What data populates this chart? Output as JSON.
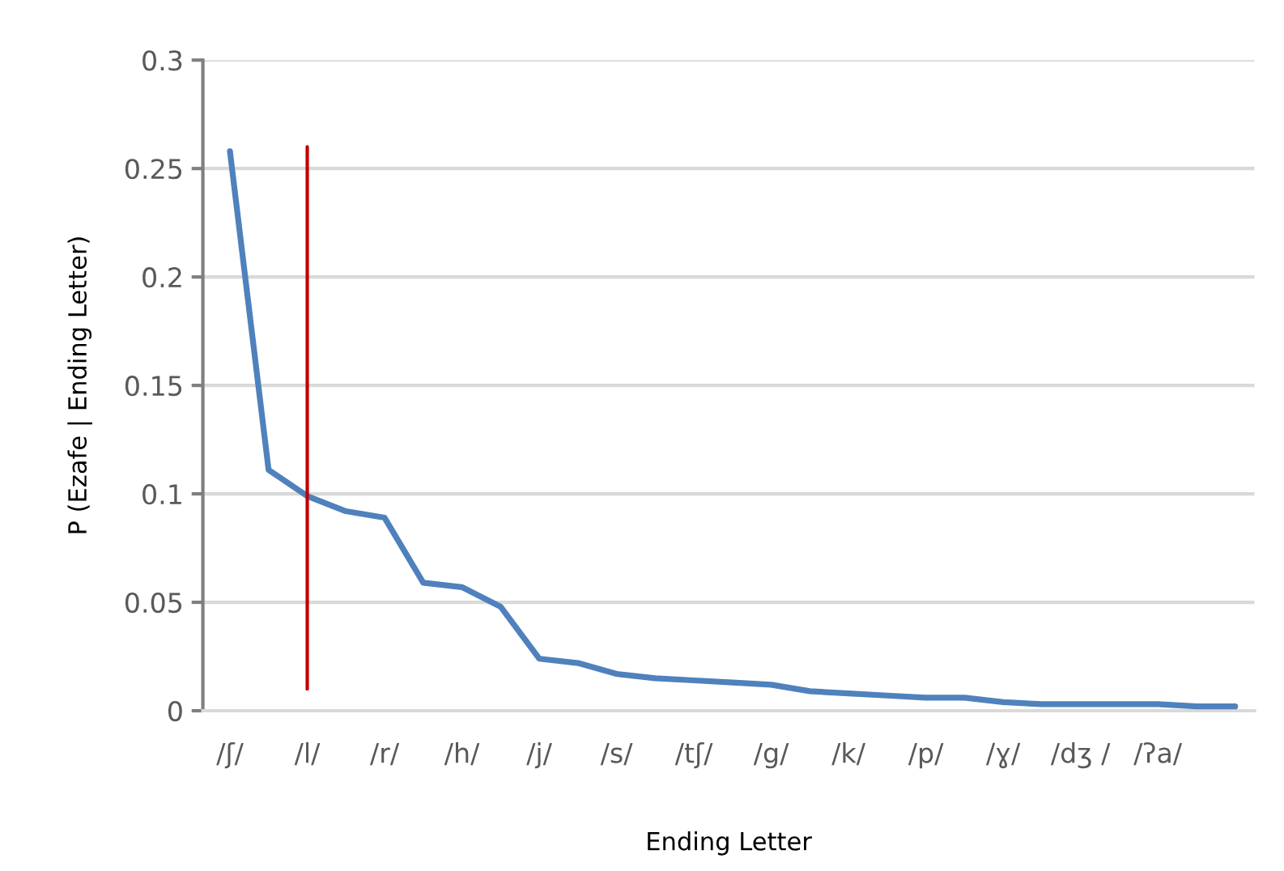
{
  "chart_data": {
    "type": "line",
    "xlabel": "Ending Letter",
    "ylabel": "P (Ezafe | Ending Letter)",
    "categories": [
      "/ʃ/",
      null,
      "/l/",
      null,
      "/r/",
      null,
      "/h/",
      null,
      "/j/",
      null,
      "/s/",
      null,
      "/tʃ/",
      null,
      "/g/",
      null,
      "/k/",
      null,
      "/p/",
      null,
      "/ɣ/",
      null,
      "/dʒ /",
      null,
      "/ʔa/",
      null,
      null
    ],
    "series": [
      {
        "color": "#4f81bd",
        "values": [
          0.258,
          0.111,
          0.099,
          0.092,
          0.089,
          0.059,
          0.057,
          0.048,
          0.024,
          0.022,
          0.017,
          0.015,
          0.014,
          0.013,
          0.012,
          0.009,
          0.008,
          0.007,
          0.006,
          0.006,
          0.004,
          0.003,
          0.003,
          0.003,
          0.003,
          0.002,
          0.002
        ]
      },
      {
        "type": "line",
        "color": "#c00000",
        "x": [
          "/l/",
          "/l/"
        ],
        "values": [
          0.01,
          0.26
        ]
      }
    ],
    "ylim": [
      0,
      0.3
    ],
    "yticks": [
      0,
      0.05,
      0.1,
      0.15,
      0.2,
      0.25,
      0.3
    ],
    "grid": "y",
    "marker": "none",
    "line_style": "solid"
  }
}
